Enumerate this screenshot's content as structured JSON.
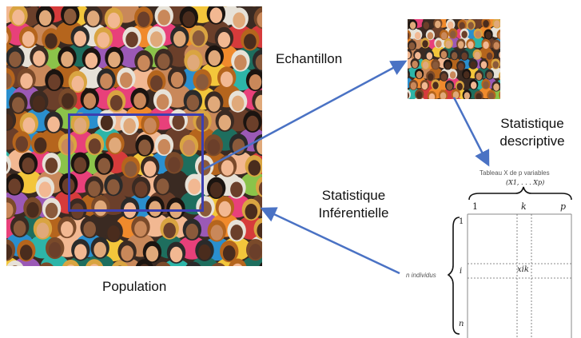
{
  "labels": {
    "population": "Population",
    "echantillon": "Echantillon",
    "desc_line1": "Statistique",
    "desc_line2": "descriptive",
    "inf_line1": "Statistique",
    "inf_line2": "Inférentielle"
  },
  "table": {
    "caption_line1": "Tableau X de p variables",
    "caption_line2": "(X1, . . . Xp)",
    "col_first": "1",
    "col_mid": "k",
    "col_last": "p",
    "row_first": "1",
    "row_mid": "i",
    "row_last": "n",
    "cell": "xik",
    "row_label": "n individus"
  },
  "colors": {
    "arrow": "#4a72c4",
    "selection_box": "#3d3fb0",
    "palette": [
      "#e8407a",
      "#f08a2c",
      "#f3c63b",
      "#2db5a8",
      "#2a8fce",
      "#6b3f2a",
      "#c9885a",
      "#f2b892",
      "#3a2a22",
      "#8bc34a",
      "#d63b3b",
      "#9b59b6",
      "#e7e2d8",
      "#1e6e5e",
      "#b5651d"
    ]
  }
}
